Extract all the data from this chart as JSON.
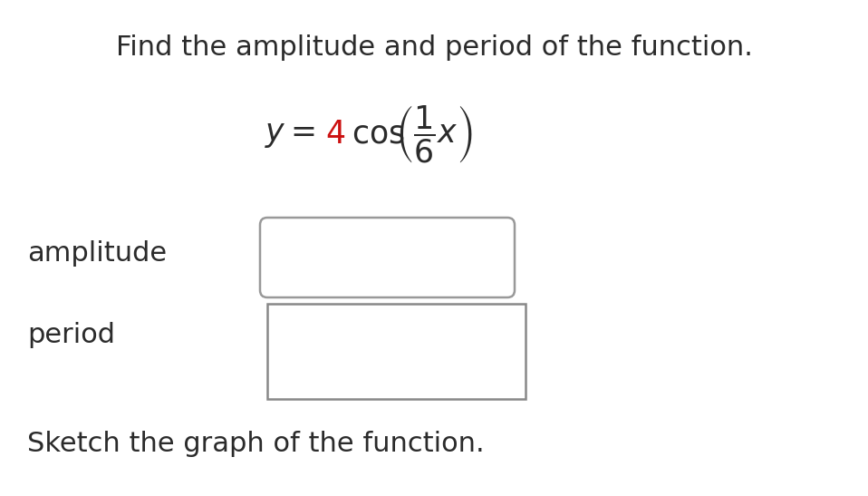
{
  "title": "Find the amplitude and period of the function.",
  "title_fontsize": 22,
  "title_color": "#2b2b2b",
  "formula_color_black": "#2b2b2b",
  "formula_color_red": "#cc1111",
  "amplitude_label": "amplitude",
  "period_label": "period",
  "label_fontsize": 22,
  "sketch_text": "Sketch the graph of the function.",
  "sketch_fontsize": 22,
  "background_color": "#ffffff",
  "box_edge_color_round": "#999999",
  "box_edge_color_square": "#888888"
}
